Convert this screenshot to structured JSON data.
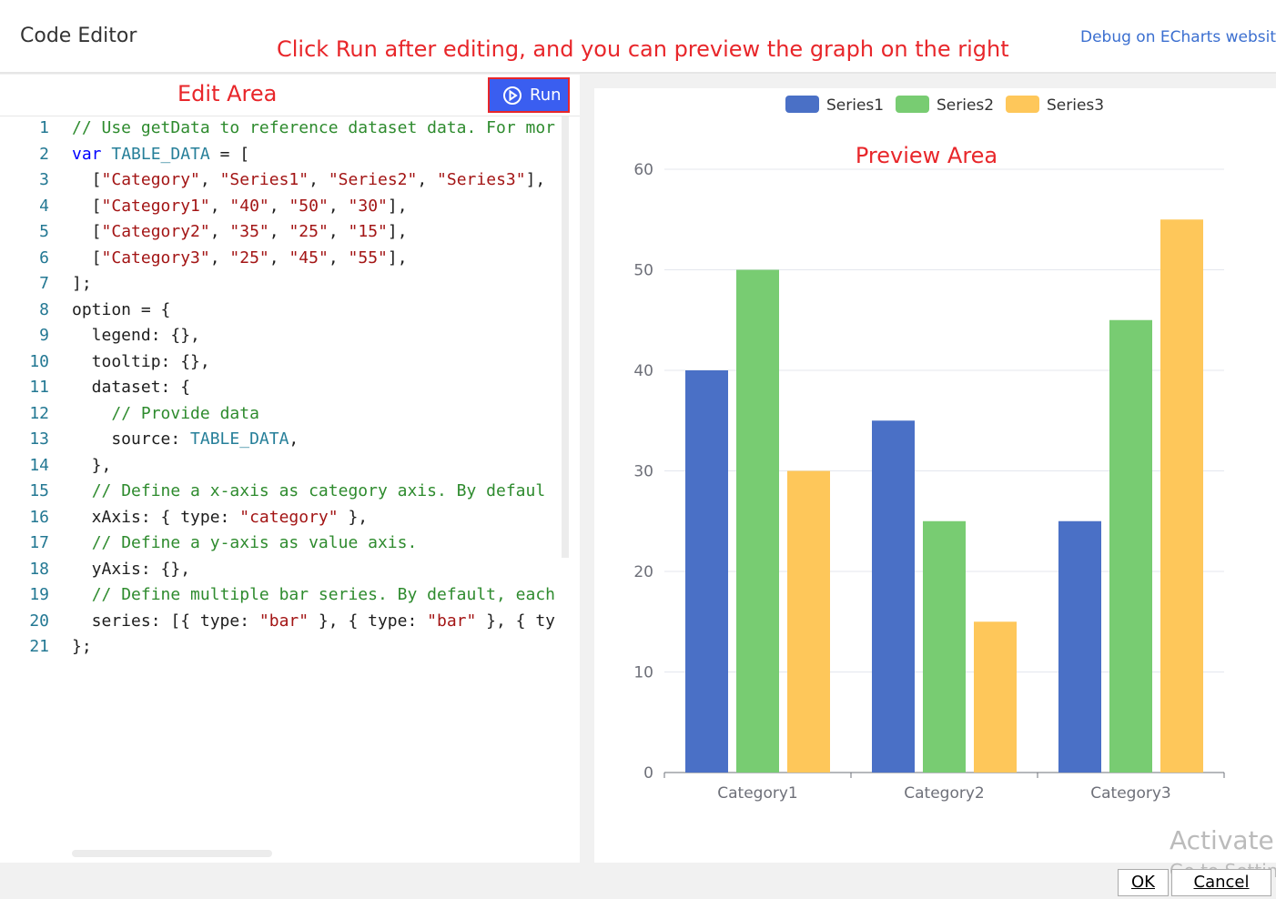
{
  "header": {
    "title": "Code Editor",
    "annotation": "Click Run after editing, and you can preview the graph on the right",
    "link": "Debug on ECharts website"
  },
  "editor": {
    "label": "Edit Area",
    "run": "Run",
    "lines": [
      {
        "number": 1,
        "tokens": [
          "// Use getData to reference dataset data. For mor"
        ]
      },
      {
        "number": 2,
        "tokens": [
          "var",
          " ",
          "TABLE_DATA",
          " = ["
        ]
      },
      {
        "number": 3,
        "tokens": [
          "  [",
          "\"Category\"",
          ", ",
          "\"Series1\"",
          ", ",
          "\"Series2\"",
          ", ",
          "\"Series3\"",
          "],"
        ]
      },
      {
        "number": 4,
        "tokens": [
          "  [",
          "\"Category1\"",
          ", ",
          "\"40\"",
          ", ",
          "\"50\"",
          ", ",
          "\"30\"",
          "],"
        ]
      },
      {
        "number": 5,
        "tokens": [
          "  [",
          "\"Category2\"",
          ", ",
          "\"35\"",
          ", ",
          "\"25\"",
          ", ",
          "\"15\"",
          "],"
        ]
      },
      {
        "number": 6,
        "tokens": [
          "  [",
          "\"Category3\"",
          ", ",
          "\"25\"",
          ", ",
          "\"45\"",
          ", ",
          "\"55\"",
          "],"
        ]
      },
      {
        "number": 7,
        "tokens": [
          "];"
        ]
      },
      {
        "number": 8,
        "tokens": [
          "option = {"
        ]
      },
      {
        "number": 9,
        "tokens": [
          "  legend: {},"
        ]
      },
      {
        "number": 10,
        "tokens": [
          "  tooltip: {},"
        ]
      },
      {
        "number": 11,
        "tokens": [
          "  dataset: {"
        ]
      },
      {
        "number": 12,
        "tokens": [
          "    ",
          "// Provide data"
        ]
      },
      {
        "number": 13,
        "tokens": [
          "    source: ",
          "TABLE_DATA",
          ","
        ]
      },
      {
        "number": 14,
        "tokens": [
          "  },"
        ]
      },
      {
        "number": 15,
        "tokens": [
          "  ",
          "// Define a x-axis as category axis. By defaul"
        ]
      },
      {
        "number": 16,
        "tokens": [
          "  xAxis: { type: ",
          "\"category\"",
          " },"
        ]
      },
      {
        "number": 17,
        "tokens": [
          "  ",
          "// Define a y-axis as value axis."
        ]
      },
      {
        "number": 18,
        "tokens": [
          "  yAxis: {},"
        ]
      },
      {
        "number": 19,
        "tokens": [
          "  ",
          "// Define multiple bar series. By default, each"
        ]
      },
      {
        "number": 20,
        "tokens": [
          "  series: [{ type: ",
          "\"bar\"",
          " }, { type: ",
          "\"bar\"",
          " }, { ty"
        ]
      },
      {
        "number": 21,
        "tokens": [
          "};"
        ]
      }
    ]
  },
  "preview": {
    "label": "Preview Area",
    "chart_data": {
      "type": "bar",
      "categories": [
        "Category1",
        "Category2",
        "Category3"
      ],
      "series": [
        {
          "name": "Series1",
          "color": "#4a70c6",
          "values": [
            40,
            35,
            25
          ]
        },
        {
          "name": "Series2",
          "color": "#78cc72",
          "values": [
            50,
            25,
            45
          ]
        },
        {
          "name": "Series3",
          "color": "#fec75a",
          "values": [
            30,
            15,
            55
          ]
        }
      ],
      "ylim": [
        0,
        60
      ],
      "yticks": [
        0,
        10,
        20,
        30,
        40,
        50,
        60
      ],
      "grid": true,
      "legend": "top"
    }
  },
  "footer": {
    "ok": "OK",
    "cancel": "Cancel",
    "watermark": "Activate",
    "watermark_sub": "Go to Settin"
  }
}
